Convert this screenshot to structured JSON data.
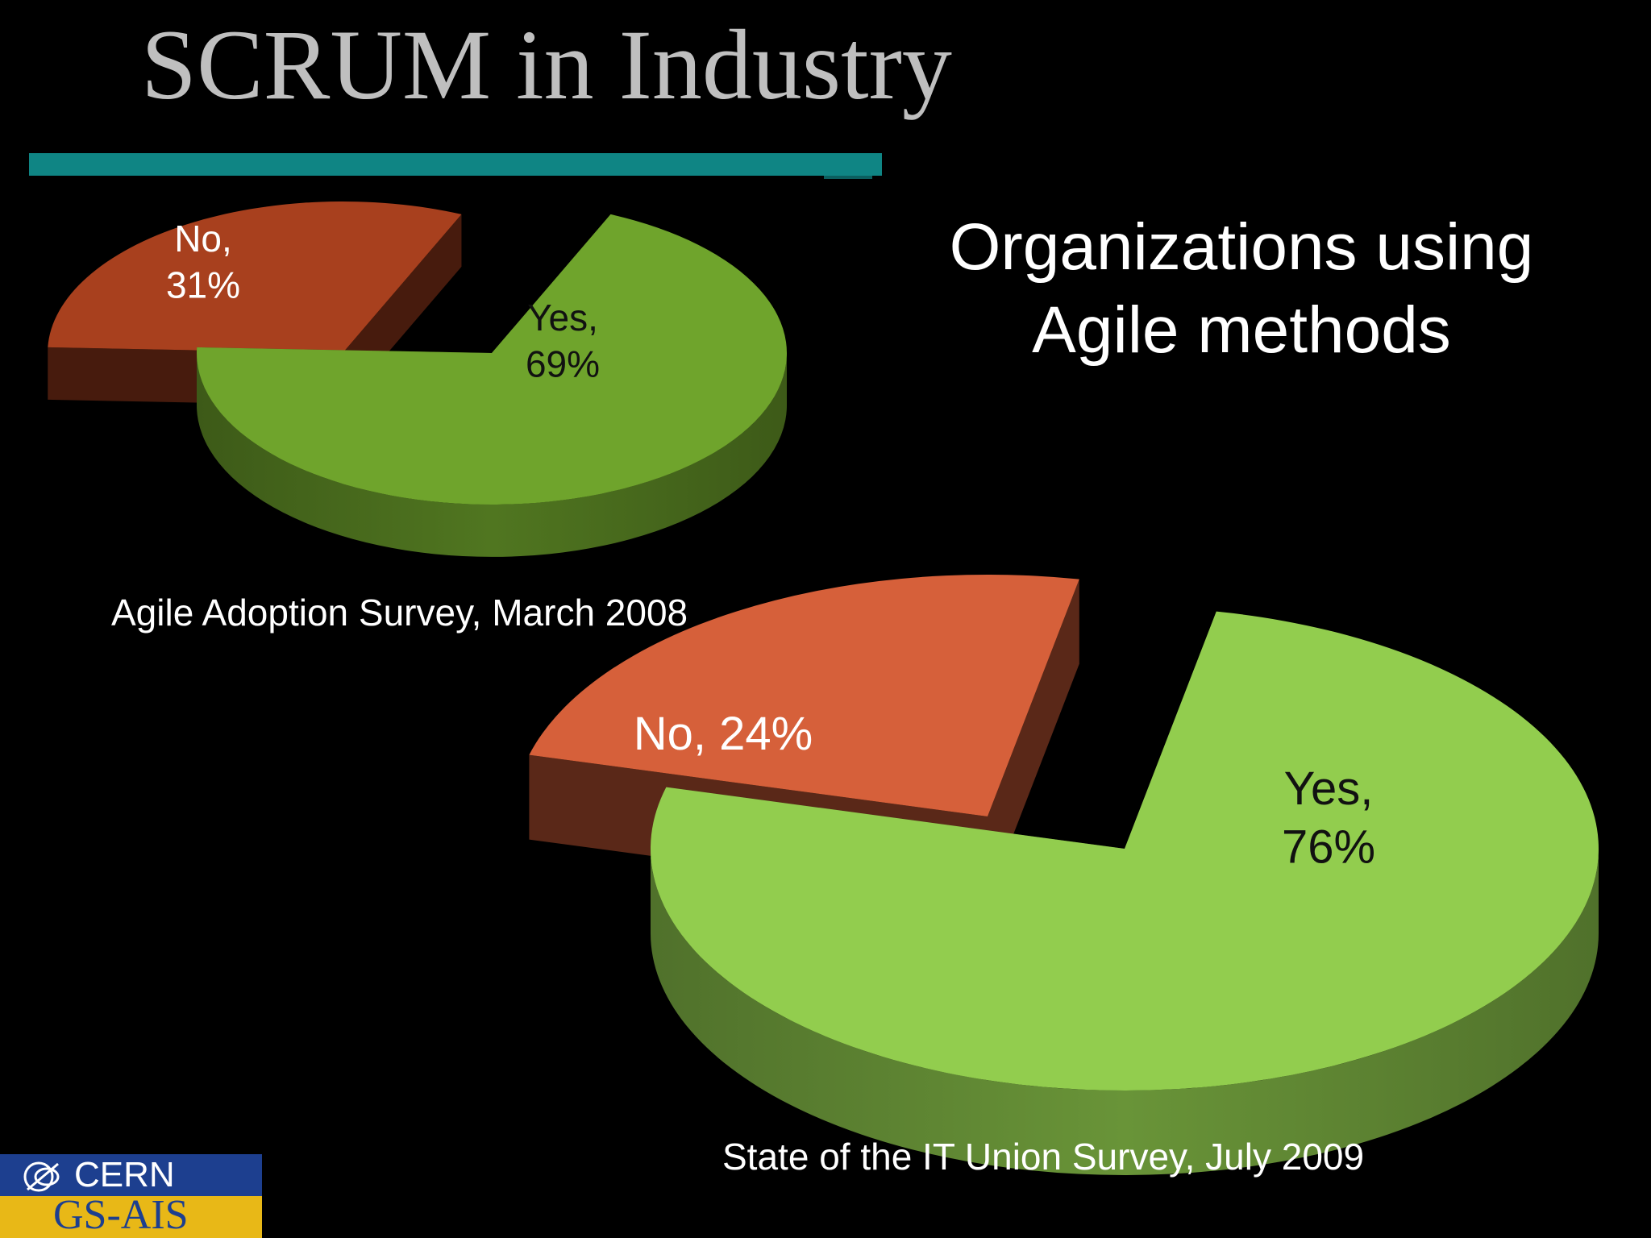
{
  "slide": {
    "title": "SCRUM in Industry",
    "heading_line1": "Organizations using",
    "heading_line2": "Agile methods"
  },
  "logo": {
    "top_text": "CERN",
    "bottom_text": "GS-AIS",
    "emblem_icon": "cern-emblem-icon",
    "colors": {
      "top": "#1d3f8f",
      "bottom": "#e8b817"
    }
  },
  "chart_data": [
    {
      "type": "pie",
      "caption": "Agile Adoption Survey, March 2008",
      "slices": [
        {
          "label": "Yes",
          "value": 69,
          "data_label_line1": "Yes,",
          "data_label_line2": "69%",
          "color": "#6fa42c"
        },
        {
          "label": "No",
          "value": 31,
          "data_label_line1": "No,",
          "data_label_line2": "31%",
          "color": "#a8401e"
        }
      ]
    },
    {
      "type": "pie",
      "caption": "State of the IT Union Survey, July 2009",
      "slices": [
        {
          "label": "Yes",
          "value": 76,
          "data_label_line1": "Yes,",
          "data_label_line2": "76%",
          "color": "#92cd4e"
        },
        {
          "label": "No",
          "value": 24,
          "data_label_line1": "No, 24%",
          "data_label_line2": "",
          "color": "#d6603a"
        }
      ]
    }
  ]
}
